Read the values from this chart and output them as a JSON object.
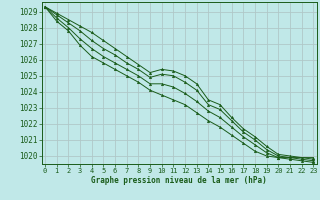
{
  "title": "Graphe pression niveau de la mer (hPa)",
  "bg_color": "#c0e8e8",
  "grid_color_h": "#b0c8c8",
  "grid_color_v": "#b0c8c8",
  "line_color": "#1a5c1a",
  "xlim": [
    -0.3,
    23.3
  ],
  "ylim": [
    1019.5,
    1029.6
  ],
  "yticks": [
    1020,
    1021,
    1022,
    1023,
    1024,
    1025,
    1026,
    1027,
    1028,
    1029
  ],
  "xticks": [
    0,
    1,
    2,
    3,
    4,
    5,
    6,
    7,
    8,
    9,
    10,
    11,
    12,
    13,
    14,
    15,
    16,
    17,
    18,
    19,
    20,
    21,
    22,
    23
  ],
  "series": [
    [
      1029.3,
      1028.9,
      1028.5,
      1028.1,
      1027.7,
      1027.2,
      1026.7,
      1026.2,
      1025.7,
      1025.2,
      1025.4,
      1025.3,
      1025.0,
      1024.5,
      1023.5,
      1023.2,
      1022.4,
      1021.7,
      1021.2,
      1020.6,
      1020.1,
      1020.0,
      1019.9,
      1019.9
    ],
    [
      1029.3,
      1028.8,
      1028.3,
      1027.8,
      1027.2,
      1026.7,
      1026.3,
      1025.8,
      1025.4,
      1024.9,
      1025.1,
      1025.0,
      1024.6,
      1024.1,
      1023.2,
      1022.9,
      1022.2,
      1021.5,
      1021.0,
      1020.4,
      1020.0,
      1019.9,
      1019.9,
      1019.8
    ],
    [
      1029.3,
      1028.6,
      1028.0,
      1027.3,
      1026.7,
      1026.2,
      1025.8,
      1025.4,
      1025.0,
      1024.5,
      1024.5,
      1024.3,
      1023.9,
      1023.4,
      1022.8,
      1022.4,
      1021.8,
      1021.2,
      1020.7,
      1020.2,
      1019.9,
      1019.9,
      1019.8,
      1019.7
    ],
    [
      1029.3,
      1028.4,
      1027.8,
      1026.9,
      1026.2,
      1025.8,
      1025.4,
      1025.0,
      1024.6,
      1024.1,
      1023.8,
      1023.5,
      1023.2,
      1022.7,
      1022.2,
      1021.8,
      1021.3,
      1020.8,
      1020.3,
      1020.0,
      1019.9,
      1019.8,
      1019.7,
      1019.6
    ]
  ]
}
